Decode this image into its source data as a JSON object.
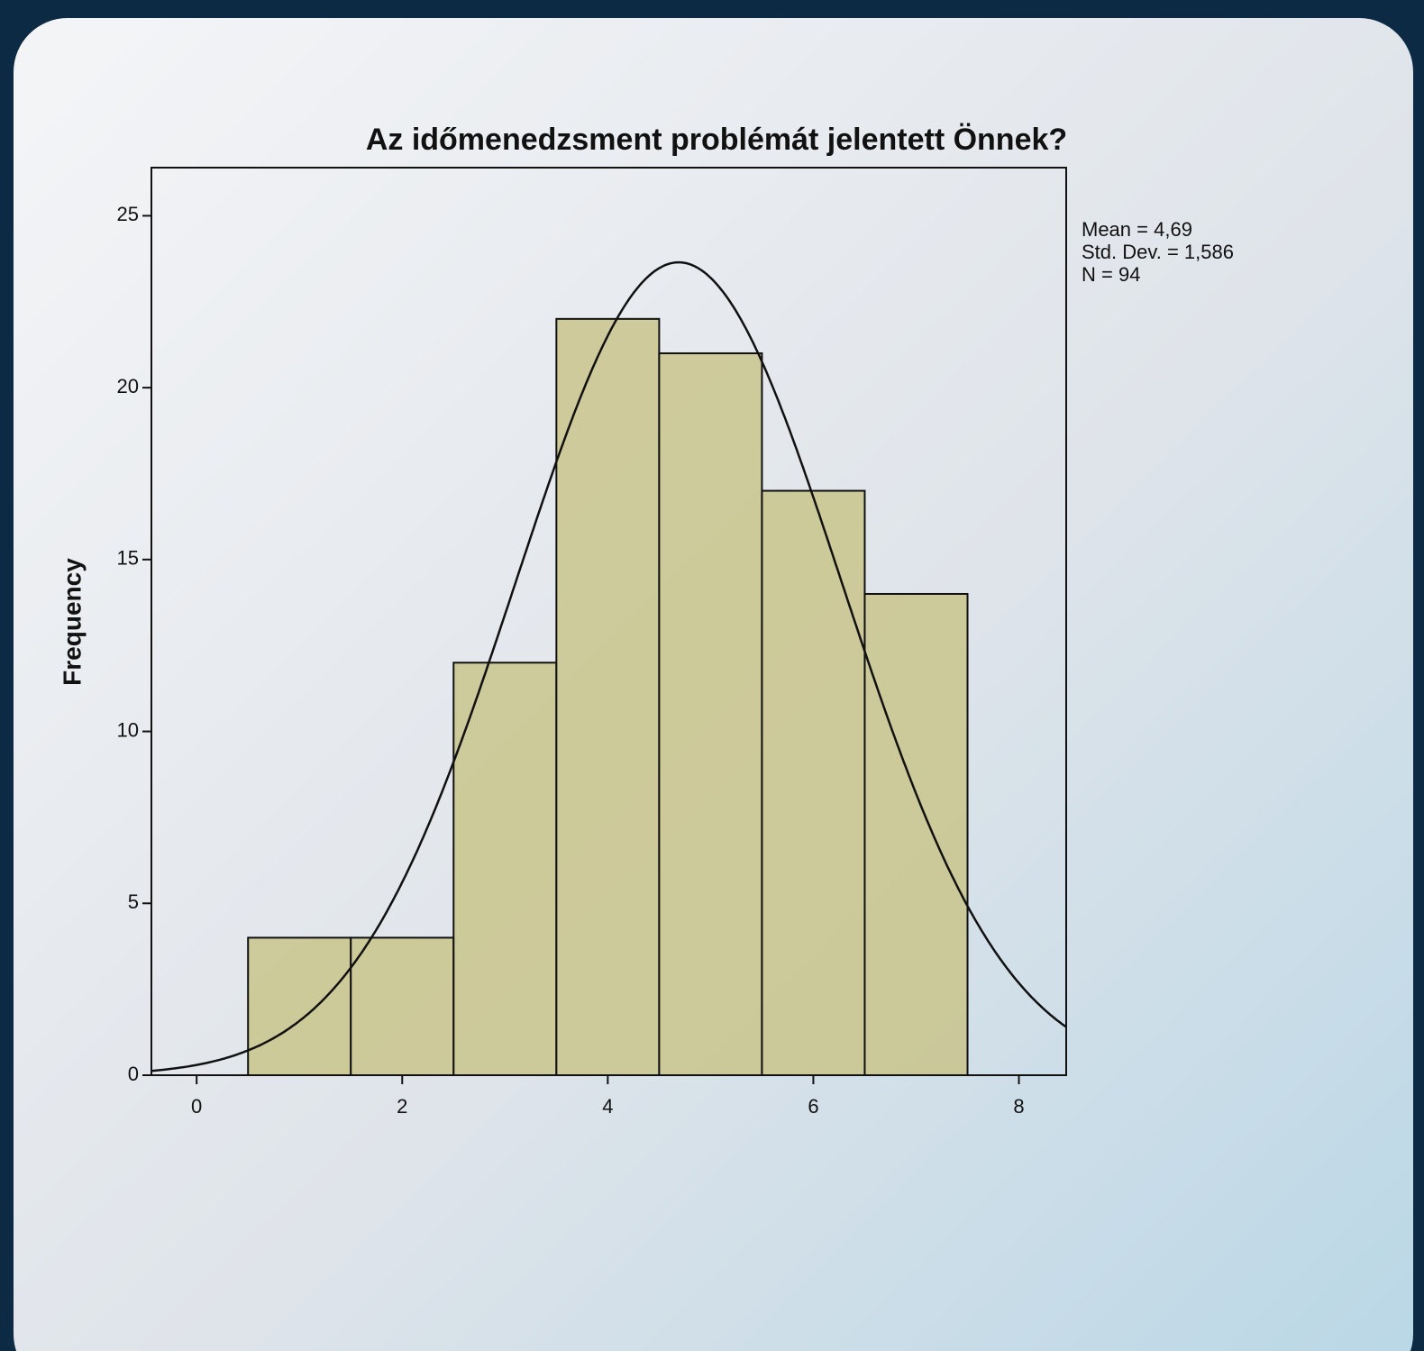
{
  "chart_data": {
    "type": "histogram",
    "title": "Az időmenedzsment problémát jelentett Önnek?",
    "ylabel": "Frequency",
    "bins": [
      0.5,
      1.5,
      2.5,
      3.5,
      4.5,
      5.5,
      6.5,
      7.5
    ],
    "values": [
      4,
      4,
      12,
      22,
      21,
      17,
      14
    ],
    "color": "#c9c48c",
    "xlim": [
      -0.44,
      8.46
    ],
    "xticks": [
      0,
      2,
      4,
      6,
      8
    ],
    "ylim": [
      0,
      26.4
    ],
    "yticks": [
      0,
      5,
      10,
      15,
      20,
      25
    ],
    "stats": [
      {
        "value": 4.69,
        "label": "Mean = 4,69"
      },
      {
        "value": 1.586,
        "label": "Std. Dev. = 1,586"
      },
      {
        "value": 94,
        "label": "N = 94"
      }
    ]
  }
}
